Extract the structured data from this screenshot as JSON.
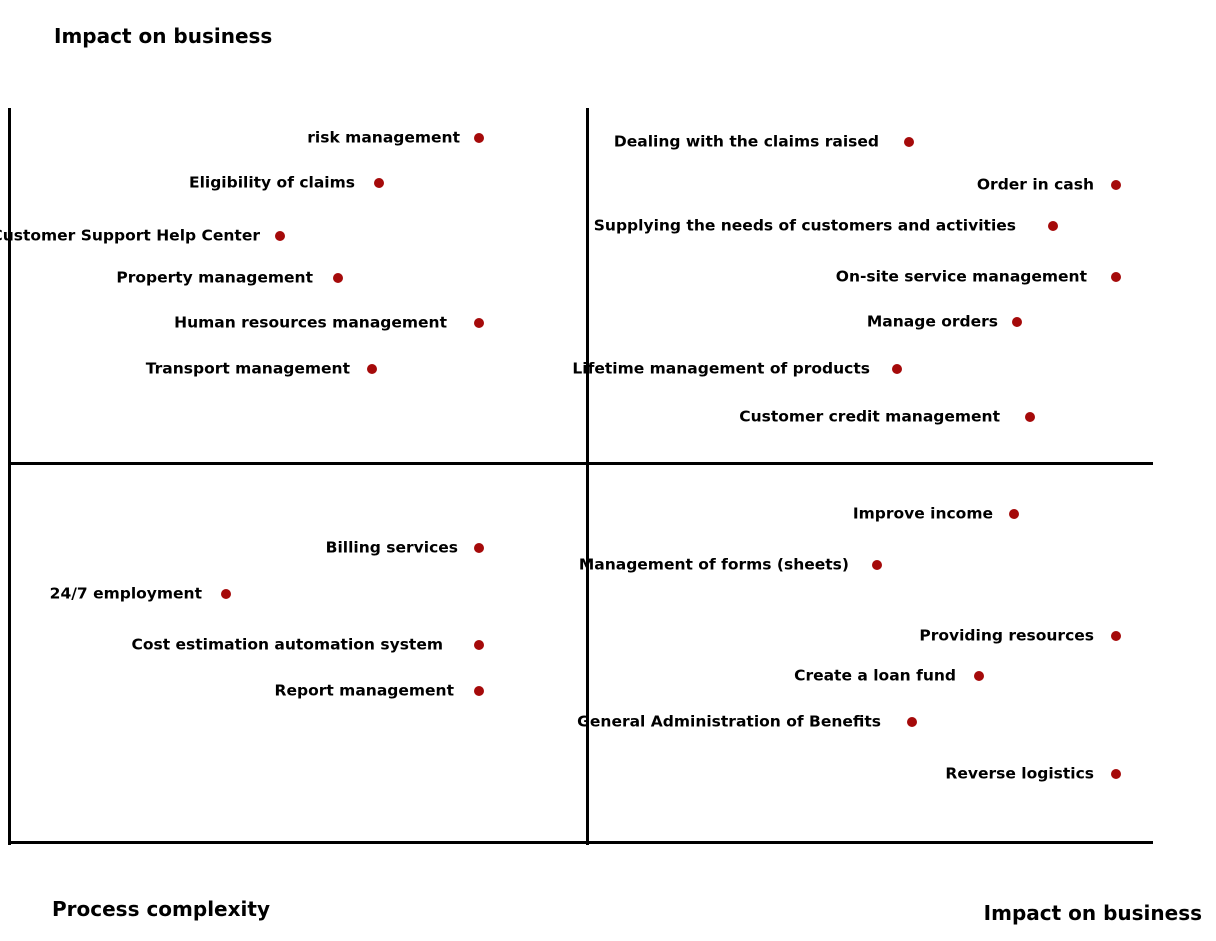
{
  "titles": {
    "top_left": "Impact on business",
    "bottom_left": "Process complexity",
    "bottom_right": "Impact on business"
  },
  "colors": {
    "dot": "#a50a0a",
    "line": "#000000"
  },
  "quadrants": {
    "top_left": [
      "risk management",
      "Eligibility of claims",
      "Customer Support Help Center",
      "Property management",
      "Human resources management",
      "Transport management"
    ],
    "top_right": [
      "Dealing with the claims raised",
      "Order in cash",
      "Supplying the needs of customers and activities",
      "On-site service management",
      "Manage orders",
      "Lifetime management of products",
      "Customer credit management"
    ],
    "bottom_left": [
      "Billing services",
      "24/7 employment",
      "Cost estimation automation system",
      "Report management"
    ],
    "bottom_right": [
      "Improve income",
      "Management of forms (sheets)",
      "Providing resources",
      "Create a loan fund",
      "General Administration of Benefits",
      "Reverse logistics"
    ]
  }
}
